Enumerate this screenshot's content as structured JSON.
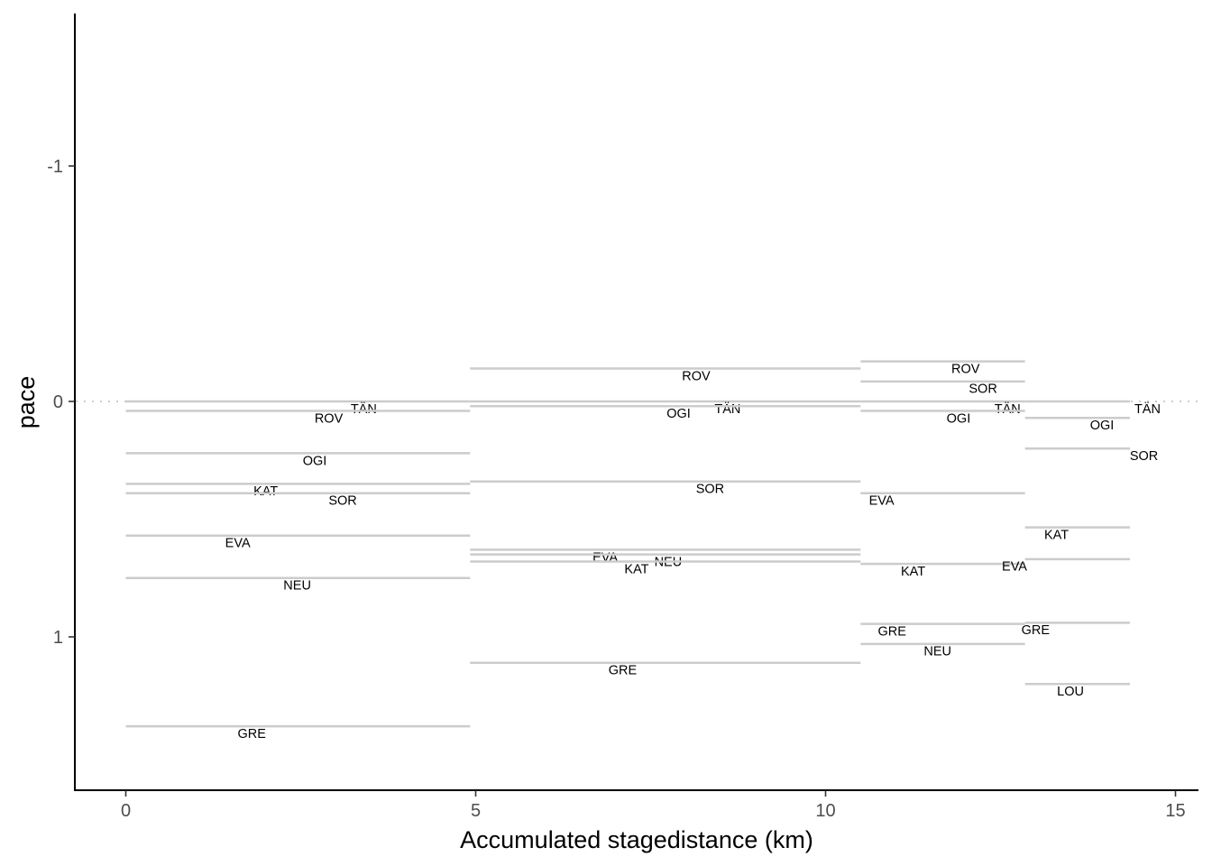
{
  "chart_data": {
    "type": "line",
    "xlabel": "Accumulated stagedistance (km)",
    "ylabel": "pace",
    "x_ticks": [
      0,
      5,
      10,
      15
    ],
    "y_ticks": [
      -1,
      0,
      1
    ],
    "y_tick_labels": [
      "-1",
      "0",
      "1"
    ],
    "xlim": [
      -0.7,
      15.3
    ],
    "ylim": [
      1.65,
      -1.65
    ],
    "y_reversed": true,
    "grid": false,
    "reference_line_y": 0,
    "segments": [
      {
        "label": "TÄN",
        "x_start": 0.0,
        "x_end": 4.92,
        "y": 0.0,
        "label_x": 3.4,
        "label_y": 0.03
      },
      {
        "label": "ROV",
        "x_start": 0.0,
        "x_end": 4.92,
        "y": 0.04,
        "label_x": 2.9,
        "label_y": 0.07
      },
      {
        "label": "OGI",
        "x_start": 0.0,
        "x_end": 4.92,
        "y": 0.22,
        "label_x": 2.7,
        "label_y": 0.25
      },
      {
        "label": "KAT",
        "x_start": 0.0,
        "x_end": 4.92,
        "y": 0.35,
        "label_x": 2.0,
        "label_y": 0.38
      },
      {
        "label": "SOR",
        "x_start": 0.0,
        "x_end": 4.92,
        "y": 0.39,
        "label_x": 3.1,
        "label_y": 0.42
      },
      {
        "label": "EVA",
        "x_start": 0.0,
        "x_end": 4.92,
        "y": 0.57,
        "label_x": 1.6,
        "label_y": 0.6
      },
      {
        "label": "NEU",
        "x_start": 0.0,
        "x_end": 4.92,
        "y": 0.75,
        "label_x": 2.45,
        "label_y": 0.78
      },
      {
        "label": "GRE",
        "x_start": 0.0,
        "x_end": 4.92,
        "y": 1.38,
        "label_x": 1.8,
        "label_y": 1.41
      },
      {
        "label": "ROV",
        "x_start": 4.92,
        "x_end": 10.5,
        "y": -0.14,
        "label_x": 8.15,
        "label_y": -0.11
      },
      {
        "label": "TÄN",
        "x_start": 4.92,
        "x_end": 10.5,
        "y": 0.0,
        "label_x": 8.6,
        "label_y": 0.03
      },
      {
        "label": "OGI",
        "x_start": 4.92,
        "x_end": 10.5,
        "y": 0.02,
        "label_x": 7.9,
        "label_y": 0.05
      },
      {
        "label": "SOR",
        "x_start": 4.92,
        "x_end": 10.5,
        "y": 0.34,
        "label_x": 8.35,
        "label_y": 0.37
      },
      {
        "label": "EVA",
        "x_start": 4.92,
        "x_end": 10.5,
        "y": 0.63,
        "label_x": 6.85,
        "label_y": 0.66
      },
      {
        "label": "NEU",
        "x_start": 4.92,
        "x_end": 10.5,
        "y": 0.65,
        "label_x": 7.75,
        "label_y": 0.68
      },
      {
        "label": "KAT",
        "x_start": 4.92,
        "x_end": 10.5,
        "y": 0.68,
        "label_x": 7.3,
        "label_y": 0.71
      },
      {
        "label": "GRE",
        "x_start": 4.92,
        "x_end": 10.5,
        "y": 1.11,
        "label_x": 7.1,
        "label_y": 1.14
      },
      {
        "label": "ROV",
        "x_start": 10.5,
        "x_end": 12.85,
        "y": -0.17,
        "label_x": 12.0,
        "label_y": -0.14
      },
      {
        "label": "SOR",
        "x_start": 10.5,
        "x_end": 12.85,
        "y": -0.085,
        "label_x": 12.25,
        "label_y": -0.055
      },
      {
        "label": "TÄN",
        "x_start": 10.5,
        "x_end": 12.85,
        "y": 0.0,
        "label_x": 12.6,
        "label_y": 0.03
      },
      {
        "label": "OGI",
        "x_start": 10.5,
        "x_end": 12.85,
        "y": 0.04,
        "label_x": 11.9,
        "label_y": 0.07
      },
      {
        "label": "EVA",
        "x_start": 10.5,
        "x_end": 12.85,
        "y": 0.39,
        "label_x": 10.8,
        "label_y": 0.42
      },
      {
        "label": "KAT",
        "x_start": 10.5,
        "x_end": 12.85,
        "y": 0.69,
        "label_x": 11.25,
        "label_y": 0.72
      },
      {
        "label": "EVA",
        "x_start": 12.85,
        "x_end": 14.35,
        "y": 0.67,
        "label_x": 12.7,
        "label_y": 0.7
      },
      {
        "label": "GRE",
        "x_start": 10.5,
        "x_end": 12.85,
        "y": 0.945,
        "label_x": 10.95,
        "label_y": 0.975
      },
      {
        "label": "NEU",
        "x_start": 10.5,
        "x_end": 12.85,
        "y": 1.03,
        "label_x": 11.6,
        "label_y": 1.06
      },
      {
        "label": "TÄN",
        "x_start": 12.85,
        "x_end": 14.35,
        "y": 0.0,
        "label_x": 14.6,
        "label_y": 0.03
      },
      {
        "label": "OGI",
        "x_start": 12.85,
        "x_end": 14.35,
        "y": 0.07,
        "label_x": 13.95,
        "label_y": 0.1
      },
      {
        "label": "SOR",
        "x_start": 12.85,
        "x_end": 14.35,
        "y": 0.2,
        "label_x": 14.55,
        "label_y": 0.23
      },
      {
        "label": "KAT",
        "x_start": 12.85,
        "x_end": 14.35,
        "y": 0.535,
        "label_x": 13.3,
        "label_y": 0.565
      },
      {
        "label": "GRE",
        "x_start": 12.85,
        "x_end": 14.35,
        "y": 0.94,
        "label_x": 13.0,
        "label_y": 0.97
      },
      {
        "label": "LOU",
        "x_start": 12.85,
        "x_end": 14.35,
        "y": 1.2,
        "label_x": 13.5,
        "label_y": 1.23
      }
    ]
  }
}
